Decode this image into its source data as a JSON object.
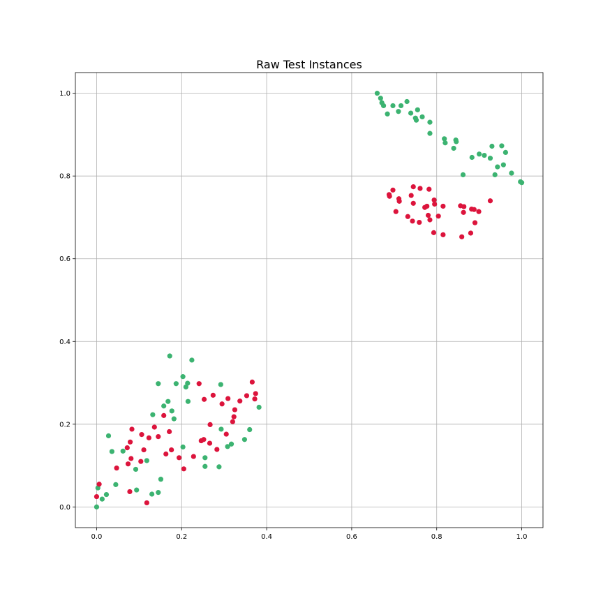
{
  "chart_data": {
    "type": "scatter",
    "title": "Raw Test Instances",
    "xlabel": "",
    "ylabel": "",
    "xlim": [
      -0.05,
      1.05
    ],
    "ylim": [
      -0.05,
      1.05
    ],
    "xticks": [
      0.0,
      0.2,
      0.4,
      0.6,
      0.8,
      1.0
    ],
    "yticks": [
      0.0,
      0.2,
      0.4,
      0.6,
      0.8,
      1.0
    ],
    "xtick_labels": [
      "0.0",
      "0.2",
      "0.4",
      "0.6",
      "0.8",
      "1.0"
    ],
    "ytick_labels": [
      "0.0",
      "0.2",
      "0.4",
      "0.6",
      "0.8",
      "1.0"
    ],
    "grid": true,
    "legend": "none",
    "series": [
      {
        "color": "#3cb371",
        "points": [
          [
            0.0,
            0.0
          ],
          [
            0.003,
            0.046
          ],
          [
            0.013,
            0.019
          ],
          [
            0.023,
            0.03
          ],
          [
            0.028,
            0.172
          ],
          [
            0.036,
            0.134
          ],
          [
            0.045,
            0.054
          ],
          [
            0.062,
            0.135
          ],
          [
            0.092,
            0.091
          ],
          [
            0.094,
            0.041
          ],
          [
            0.118,
            0.112
          ],
          [
            0.13,
            0.031
          ],
          [
            0.132,
            0.223
          ],
          [
            0.145,
            0.298
          ],
          [
            0.145,
            0.035
          ],
          [
            0.151,
            0.067
          ],
          [
            0.158,
            0.244
          ],
          [
            0.168,
            0.255
          ],
          [
            0.172,
            0.365
          ],
          [
            0.177,
            0.232
          ],
          [
            0.182,
            0.213
          ],
          [
            0.187,
            0.298
          ],
          [
            0.203,
            0.315
          ],
          [
            0.203,
            0.145
          ],
          [
            0.21,
            0.29
          ],
          [
            0.214,
            0.299
          ],
          [
            0.215,
            0.255
          ],
          [
            0.224,
            0.355
          ],
          [
            0.255,
            0.119
          ],
          [
            0.255,
            0.098
          ],
          [
            0.288,
            0.097
          ],
          [
            0.292,
            0.296
          ],
          [
            0.293,
            0.188
          ],
          [
            0.308,
            0.146
          ],
          [
            0.317,
            0.152
          ],
          [
            0.348,
            0.163
          ],
          [
            0.36,
            0.187
          ],
          [
            0.382,
            0.241
          ],
          [
            0.66,
            1.0
          ],
          [
            0.668,
            0.988
          ],
          [
            0.671,
            0.977
          ],
          [
            0.675,
            0.97
          ],
          [
            0.684,
            0.95
          ],
          [
            0.697,
            0.97
          ],
          [
            0.71,
            0.956
          ],
          [
            0.716,
            0.97
          ],
          [
            0.73,
            0.98
          ],
          [
            0.739,
            0.952
          ],
          [
            0.75,
            0.94
          ],
          [
            0.752,
            0.935
          ],
          [
            0.755,
            0.96
          ],
          [
            0.766,
            0.943
          ],
          [
            0.784,
            0.903
          ],
          [
            0.784,
            0.93
          ],
          [
            0.818,
            0.89
          ],
          [
            0.82,
            0.88
          ],
          [
            0.84,
            0.867
          ],
          [
            0.845,
            0.887
          ],
          [
            0.846,
            0.883
          ],
          [
            0.862,
            0.803
          ],
          [
            0.883,
            0.845
          ],
          [
            0.9,
            0.853
          ],
          [
            0.912,
            0.85
          ],
          [
            0.926,
            0.843
          ],
          [
            0.93,
            0.872
          ],
          [
            0.937,
            0.803
          ],
          [
            0.943,
            0.822
          ],
          [
            0.953,
            0.873
          ],
          [
            0.957,
            0.827
          ],
          [
            0.962,
            0.857
          ],
          [
            0.976,
            0.807
          ],
          [
            0.997,
            0.786
          ],
          [
            1.0,
            0.784
          ]
        ]
      },
      {
        "color": "#dc143c",
        "points": [
          [
            0.0,
            0.025
          ],
          [
            0.006,
            0.055
          ],
          [
            0.047,
            0.094
          ],
          [
            0.072,
            0.143
          ],
          [
            0.074,
            0.104
          ],
          [
            0.078,
            0.037
          ],
          [
            0.079,
            0.157
          ],
          [
            0.081,
            0.117
          ],
          [
            0.083,
            0.188
          ],
          [
            0.104,
            0.11
          ],
          [
            0.106,
            0.175
          ],
          [
            0.111,
            0.138
          ],
          [
            0.118,
            0.01
          ],
          [
            0.123,
            0.167
          ],
          [
            0.136,
            0.193
          ],
          [
            0.145,
            0.17
          ],
          [
            0.158,
            0.221
          ],
          [
            0.163,
            0.128
          ],
          [
            0.171,
            0.182
          ],
          [
            0.176,
            0.138
          ],
          [
            0.194,
            0.119
          ],
          [
            0.205,
            0.092
          ],
          [
            0.228,
            0.122
          ],
          [
            0.241,
            0.298
          ],
          [
            0.246,
            0.16
          ],
          [
            0.252,
            0.163
          ],
          [
            0.253,
            0.26
          ],
          [
            0.266,
            0.154
          ],
          [
            0.267,
            0.199
          ],
          [
            0.274,
            0.27
          ],
          [
            0.283,
            0.139
          ],
          [
            0.295,
            0.249
          ],
          [
            0.305,
            0.176
          ],
          [
            0.309,
            0.262
          ],
          [
            0.32,
            0.206
          ],
          [
            0.323,
            0.218
          ],
          [
            0.325,
            0.235
          ],
          [
            0.337,
            0.256
          ],
          [
            0.353,
            0.269
          ],
          [
            0.366,
            0.302
          ],
          [
            0.372,
            0.261
          ],
          [
            0.374,
            0.274
          ],
          [
            0.688,
            0.755
          ],
          [
            0.689,
            0.751
          ],
          [
            0.697,
            0.766
          ],
          [
            0.704,
            0.714
          ],
          [
            0.711,
            0.745
          ],
          [
            0.712,
            0.739
          ],
          [
            0.732,
            0.702
          ],
          [
            0.74,
            0.753
          ],
          [
            0.743,
            0.691
          ],
          [
            0.745,
            0.734
          ],
          [
            0.745,
            0.774
          ],
          [
            0.759,
            0.688
          ],
          [
            0.761,
            0.77
          ],
          [
            0.772,
            0.724
          ],
          [
            0.777,
            0.727
          ],
          [
            0.78,
            0.705
          ],
          [
            0.782,
            0.768
          ],
          [
            0.784,
            0.694
          ],
          [
            0.793,
            0.663
          ],
          [
            0.794,
            0.742
          ],
          [
            0.795,
            0.732
          ],
          [
            0.804,
            0.703
          ],
          [
            0.815,
            0.727
          ],
          [
            0.815,
            0.658
          ],
          [
            0.856,
            0.728
          ],
          [
            0.859,
            0.653
          ],
          [
            0.863,
            0.712
          ],
          [
            0.864,
            0.726
          ],
          [
            0.88,
            0.662
          ],
          [
            0.882,
            0.72
          ],
          [
            0.888,
            0.719
          ],
          [
            0.89,
            0.687
          ],
          [
            0.899,
            0.714
          ],
          [
            0.926,
            0.74
          ]
        ]
      }
    ]
  }
}
